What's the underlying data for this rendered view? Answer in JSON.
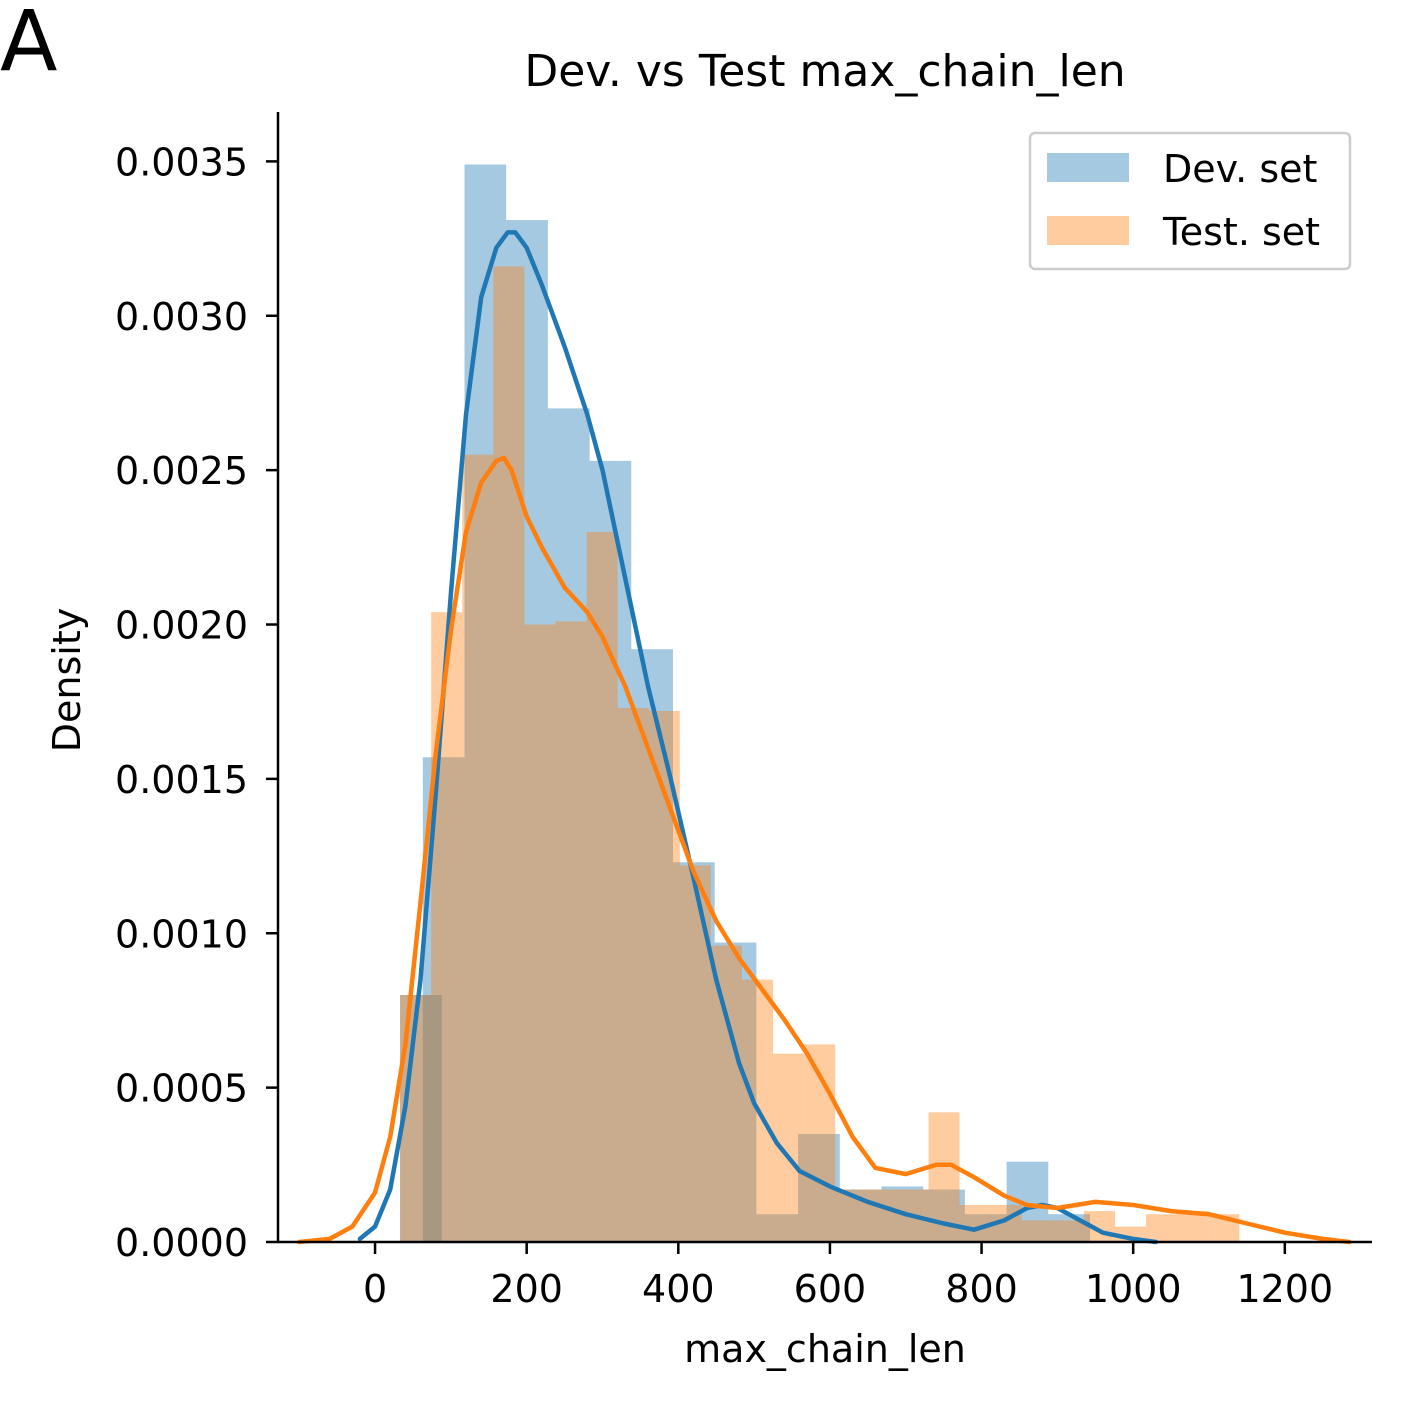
{
  "panel_label": "A",
  "chart_data": {
    "type": "bar",
    "title": "Dev. vs Test max_chain_len",
    "xlabel": "max_chain_len",
    "ylabel": "Density",
    "xlim": [
      -128,
      1315
    ],
    "ylim": [
      0,
      0.00366
    ],
    "xticks": [
      0,
      200,
      400,
      600,
      800,
      1000,
      1200
    ],
    "xtick_labels": [
      "0",
      "200",
      "400",
      "600",
      "800",
      "1000",
      "1200"
    ],
    "yticks": [
      0.0,
      0.0005,
      0.001,
      0.0015,
      0.002,
      0.0025,
      0.003,
      0.0035
    ],
    "ytick_labels": [
      "0.0000",
      "0.0005",
      "0.0010",
      "0.0015",
      "0.0020",
      "0.0025",
      "0.0030",
      "0.0035"
    ],
    "grid": false,
    "legend_position": "top-right",
    "histograms": [
      {
        "name": "Dev. set",
        "color": "#1f77b4",
        "opacity": 0.4,
        "bin_width": 55,
        "bins": [
          {
            "x0": 33,
            "height": 0.0008
          },
          {
            "x0": 63,
            "height": 0.00157
          },
          {
            "x0": 118,
            "height": 0.00349
          },
          {
            "x0": 173,
            "height": 0.00331
          },
          {
            "x0": 228,
            "height": 0.0027
          },
          {
            "x0": 283,
            "height": 0.00253
          },
          {
            "x0": 338,
            "height": 0.00192
          },
          {
            "x0": 393,
            "height": 0.00123
          },
          {
            "x0": 448,
            "height": 0.00097
          },
          {
            "x0": 503,
            "height": 9e-05
          },
          {
            "x0": 558,
            "height": 0.00035
          },
          {
            "x0": 613,
            "height": 0.00017
          },
          {
            "x0": 668,
            "height": 0.00018
          },
          {
            "x0": 723,
            "height": 0.00017
          },
          {
            "x0": 778,
            "height": 9e-05
          },
          {
            "x0": 833,
            "height": 0.00026
          },
          {
            "x0": 888,
            "height": 9e-05
          }
        ]
      },
      {
        "name": "Test. set",
        "color": "#ff7f0e",
        "opacity": 0.4,
        "bin_width": 41,
        "bins": [
          {
            "x0": 33,
            "height": 0.0008
          },
          {
            "x0": 74,
            "height": 0.00204
          },
          {
            "x0": 115,
            "height": 0.00255
          },
          {
            "x0": 156,
            "height": 0.00316
          },
          {
            "x0": 197,
            "height": 0.002
          },
          {
            "x0": 238,
            "height": 0.00201
          },
          {
            "x0": 279,
            "height": 0.0023
          },
          {
            "x0": 320,
            "height": 0.00173
          },
          {
            "x0": 361,
            "height": 0.00172
          },
          {
            "x0": 402,
            "height": 0.00122
          },
          {
            "x0": 443,
            "height": 0.00096
          },
          {
            "x0": 484,
            "height": 0.00085
          },
          {
            "x0": 525,
            "height": 0.00061
          },
          {
            "x0": 566,
            "height": 0.00064
          },
          {
            "x0": 607,
            "height": 0.00017
          },
          {
            "x0": 648,
            "height": 0.00017
          },
          {
            "x0": 689,
            "height": 0.00017
          },
          {
            "x0": 730,
            "height": 0.00042
          },
          {
            "x0": 771,
            "height": 0.00012
          },
          {
            "x0": 812,
            "height": 0.00012
          },
          {
            "x0": 853,
            "height": 7e-05
          },
          {
            "x0": 894,
            "height": 7e-05
          },
          {
            "x0": 935,
            "height": 0.0001
          },
          {
            "x0": 976,
            "height": 5e-05
          },
          {
            "x0": 1017,
            "height": 9e-05
          },
          {
            "x0": 1058,
            "height": 0.0001
          },
          {
            "x0": 1099,
            "height": 9e-05
          }
        ]
      }
    ],
    "series": [
      {
        "name": "Dev. set",
        "color": "#1f77b4",
        "x": [
          -20,
          0,
          20,
          40,
          60,
          80,
          100,
          120,
          140,
          160,
          175,
          185,
          200,
          220,
          250,
          280,
          300,
          330,
          360,
          390,
          420,
          450,
          480,
          500,
          530,
          560,
          600,
          650,
          700,
          750,
          790,
          830,
          860,
          880,
          900,
          930,
          960,
          1000,
          1030
        ],
        "y": [
          1e-05,
          5e-05,
          0.00017,
          0.00044,
          0.00085,
          0.00145,
          0.0021,
          0.00268,
          0.00306,
          0.00322,
          0.00327,
          0.00327,
          0.00322,
          0.0031,
          0.0029,
          0.00268,
          0.0025,
          0.00215,
          0.0018,
          0.0015,
          0.00118,
          0.00085,
          0.00058,
          0.00045,
          0.00032,
          0.00023,
          0.00018,
          0.00013,
          9e-05,
          6e-05,
          4e-05,
          7e-05,
          0.00011,
          0.00012,
          0.00011,
          7e-05,
          3e-05,
          1e-05,
          0.0
        ]
      },
      {
        "name": "Test. set",
        "color": "#ff7f0e",
        "x": [
          -100,
          -60,
          -30,
          0,
          20,
          40,
          60,
          80,
          100,
          120,
          140,
          160,
          170,
          180,
          200,
          220,
          250,
          280,
          300,
          330,
          360,
          390,
          420,
          450,
          480,
          510,
          540,
          570,
          600,
          630,
          660,
          700,
          740,
          760,
          790,
          830,
          860,
          900,
          950,
          1000,
          1050,
          1100,
          1150,
          1200,
          1250,
          1285
        ],
        "y": [
          0.0,
          1e-05,
          5e-05,
          0.00016,
          0.00034,
          0.00064,
          0.0011,
          0.00158,
          0.00198,
          0.0023,
          0.00246,
          0.00253,
          0.00254,
          0.0025,
          0.00235,
          0.00225,
          0.00212,
          0.00204,
          0.00196,
          0.0018,
          0.0016,
          0.0014,
          0.0012,
          0.00104,
          0.00092,
          0.00082,
          0.00072,
          0.00061,
          0.00048,
          0.00034,
          0.00024,
          0.00022,
          0.00025,
          0.00025,
          0.00021,
          0.00015,
          0.00012,
          0.00011,
          0.00013,
          0.00012,
          0.0001,
          9e-05,
          6e-05,
          3e-05,
          1e-05,
          0.0
        ]
      }
    ]
  }
}
